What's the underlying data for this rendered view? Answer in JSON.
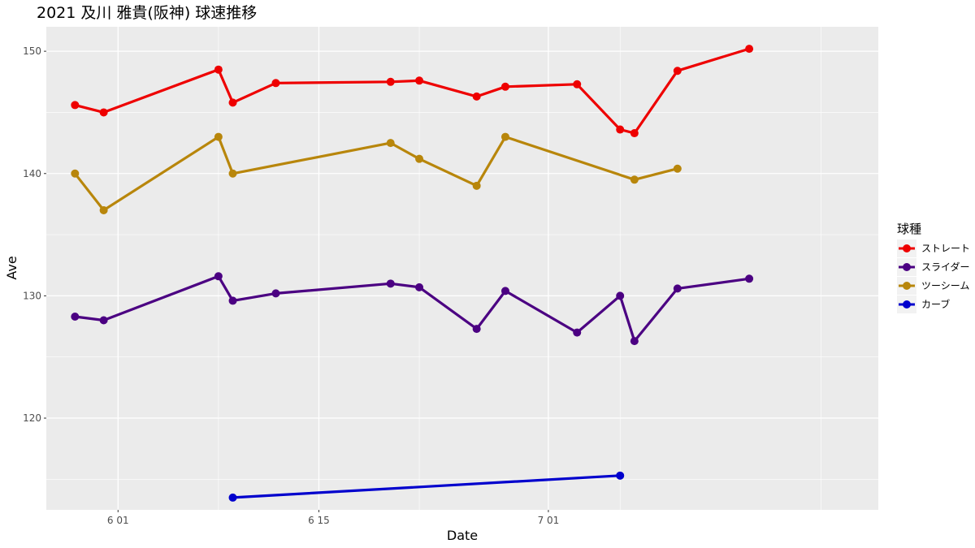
{
  "chart_data": {
    "type": "line",
    "title": "2021 及川 雅貴(阪神) 球速推移",
    "xlabel": "Date",
    "ylabel": "Ave",
    "x_ticks": [
      {
        "label": "6 01",
        "date": "2021-06-01"
      },
      {
        "label": "6 15",
        "date": "2021-06-15"
      },
      {
        "label": "7 01",
        "date": "2021-07-01"
      }
    ],
    "y_ticks": [
      120,
      130,
      140,
      150
    ],
    "xlim": [
      "2021-05-27",
      "2021-07-24"
    ],
    "ylim": [
      112.5,
      152
    ],
    "grid": true,
    "legend": {
      "title": "球種",
      "position": "right"
    },
    "series": [
      {
        "name": "ストレート",
        "color": "#EE0000",
        "points": [
          {
            "x": "2021-05-29",
            "y": 145.6
          },
          {
            "x": "2021-05-31",
            "y": 145.0
          },
          {
            "x": "2021-06-08",
            "y": 148.5
          },
          {
            "x": "2021-06-09",
            "y": 145.8
          },
          {
            "x": "2021-06-12",
            "y": 147.4
          },
          {
            "x": "2021-06-20",
            "y": 147.5
          },
          {
            "x": "2021-06-22",
            "y": 147.6
          },
          {
            "x": "2021-06-26",
            "y": 146.3
          },
          {
            "x": "2021-06-28",
            "y": 147.1
          },
          {
            "x": "2021-07-03",
            "y": 147.3
          },
          {
            "x": "2021-07-06",
            "y": 143.6
          },
          {
            "x": "2021-07-07",
            "y": 143.3
          },
          {
            "x": "2021-07-10",
            "y": 148.4
          },
          {
            "x": "2021-07-15",
            "y": 150.2
          }
        ]
      },
      {
        "name": "スライダー",
        "color": "#4B0082",
        "points": [
          {
            "x": "2021-05-29",
            "y": 128.3
          },
          {
            "x": "2021-05-31",
            "y": 128.0
          },
          {
            "x": "2021-06-08",
            "y": 131.6
          },
          {
            "x": "2021-06-09",
            "y": 129.6
          },
          {
            "x": "2021-06-12",
            "y": 130.2
          },
          {
            "x": "2021-06-20",
            "y": 131.0
          },
          {
            "x": "2021-06-22",
            "y": 130.7
          },
          {
            "x": "2021-06-26",
            "y": 127.3
          },
          {
            "x": "2021-06-28",
            "y": 130.4
          },
          {
            "x": "2021-07-03",
            "y": 127.0
          },
          {
            "x": "2021-07-06",
            "y": 130.0
          },
          {
            "x": "2021-07-07",
            "y": 126.3
          },
          {
            "x": "2021-07-10",
            "y": 130.6
          },
          {
            "x": "2021-07-15",
            "y": 131.4
          }
        ]
      },
      {
        "name": "ツーシーム",
        "color": "#B8860B",
        "points": [
          {
            "x": "2021-05-29",
            "y": 140.0
          },
          {
            "x": "2021-05-31",
            "y": 137.0
          },
          {
            "x": "2021-06-08",
            "y": 143.0
          },
          {
            "x": "2021-06-09",
            "y": 140.0
          },
          {
            "x": "2021-06-20",
            "y": 142.5
          },
          {
            "x": "2021-06-22",
            "y": 141.2
          },
          {
            "x": "2021-06-26",
            "y": 139.0
          },
          {
            "x": "2021-06-28",
            "y": 143.0
          },
          {
            "x": "2021-07-07",
            "y": 139.5
          },
          {
            "x": "2021-07-10",
            "y": 140.4
          }
        ]
      },
      {
        "name": "カーブ",
        "color": "#0000CD",
        "points": [
          {
            "x": "2021-06-09",
            "y": 113.5
          },
          {
            "x": "2021-07-06",
            "y": 115.3
          }
        ]
      }
    ]
  }
}
